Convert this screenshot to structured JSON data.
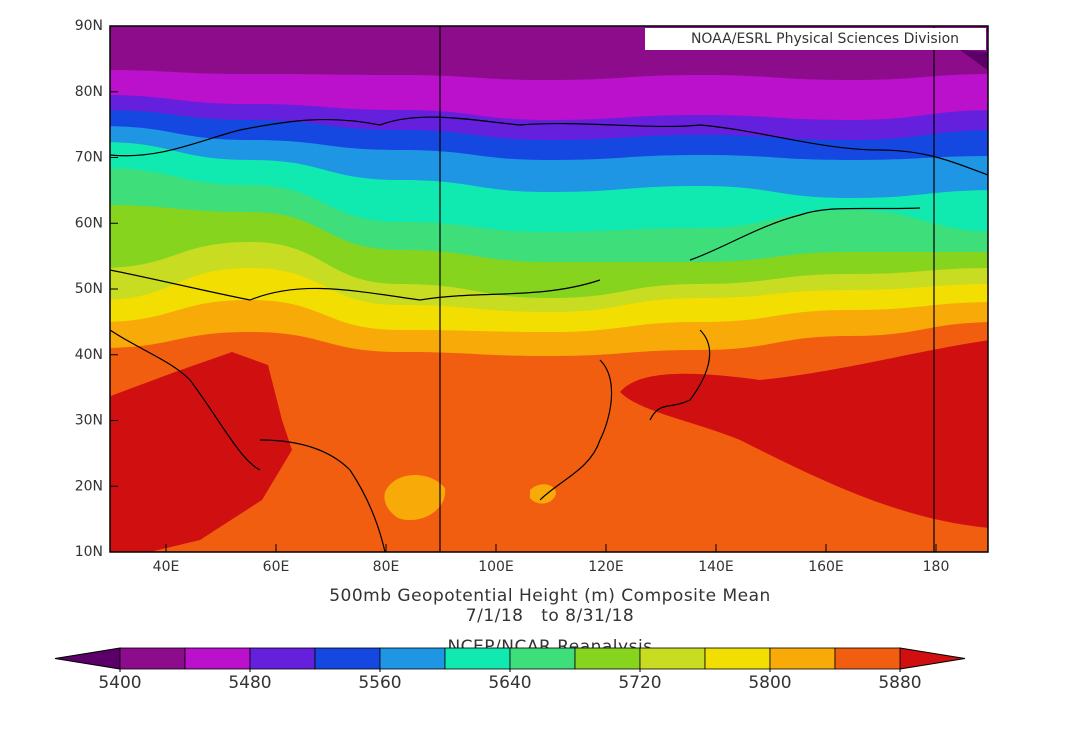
{
  "credit": "NOAA/ESRL Physical Sciences Division",
  "lat_labels": [
    "90N",
    "80N",
    "70N",
    "60N",
    "50N",
    "40N",
    "30N",
    "20N",
    "10N"
  ],
  "lon_labels": [
    "40E",
    "60E",
    "80E",
    "100E",
    "120E",
    "140E",
    "160E",
    "180"
  ],
  "title": [
    "500mb Geopotential Height (m) Composite Mean",
    "7/1/18   to 8/31/18",
    "NCEP/NCAR Reanalysis"
  ],
  "colorbar": {
    "labels": [
      5400,
      5480,
      5560,
      5640,
      5720,
      5800,
      5880
    ],
    "low_color": "#5a0068",
    "colors": [
      "#8c0c8c",
      "#bb10cc",
      "#6420dc",
      "#1448e0",
      "#1e96e4",
      "#10eab0",
      "#3ede7a",
      "#86d41e",
      "#c8dc22",
      "#f2de00",
      "#f8aa08",
      "#f25e10"
    ],
    "high_color": "#d01010"
  }
}
